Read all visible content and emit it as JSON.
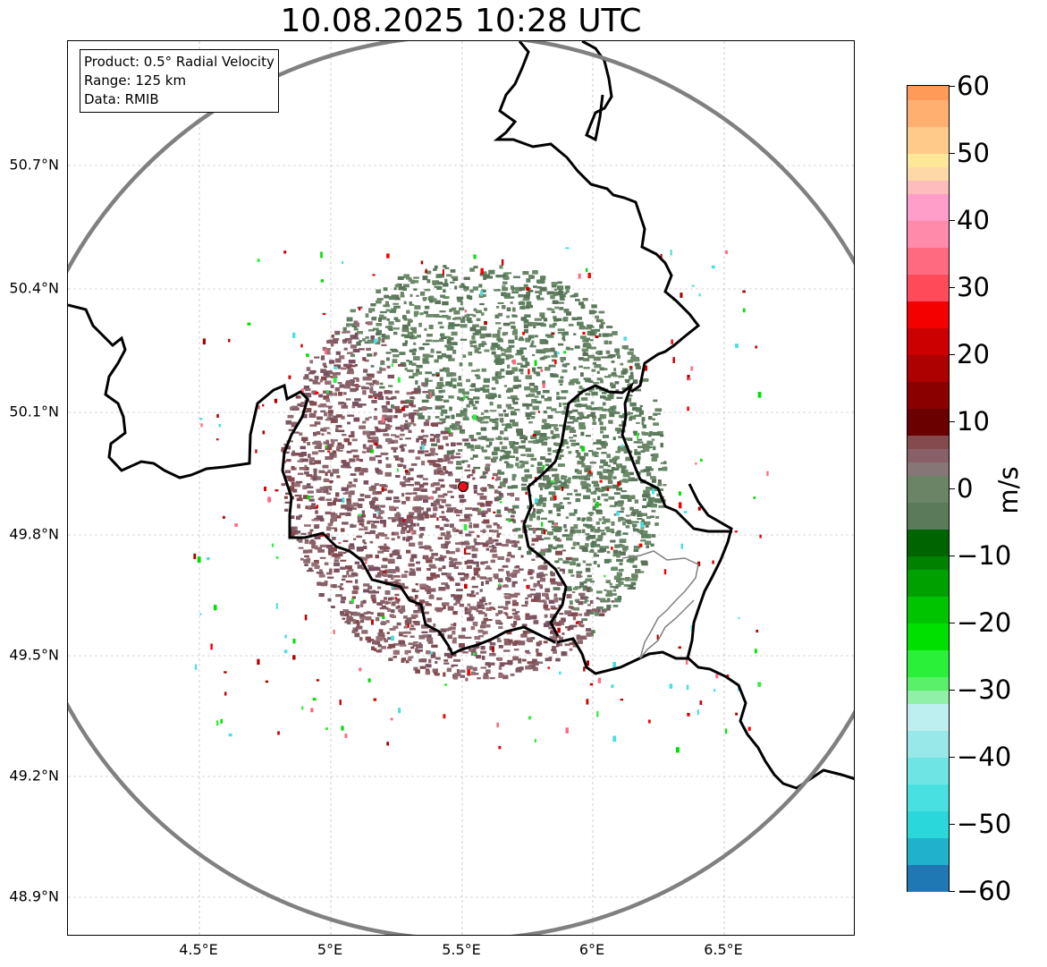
{
  "title": "10.08.2025 10:28 UTC",
  "info": {
    "product": "Product: 0.5° Radial Velocity",
    "range": "Range: 125 km",
    "data": "Data: RMIB"
  },
  "lat_labels": [
    "50.7°N",
    "50.4°N",
    "50.1°N",
    "49.8°N",
    "49.5°N",
    "49.2°N",
    "48.9°N"
  ],
  "lon_labels": [
    "4.5°E",
    "5°E",
    "5.5°E",
    "6°E",
    "6.5°E"
  ],
  "colorbar": {
    "unit": "m/s",
    "ticks": [
      "60",
      "50",
      "40",
      "30",
      "20",
      "10",
      "0",
      "−10",
      "−20",
      "−30",
      "−40",
      "−50",
      "−60"
    ],
    "min": -60,
    "max": 60,
    "stops": [
      {
        "from": -60,
        "to": -56,
        "color": "#1f77b4"
      },
      {
        "from": -56,
        "to": -52,
        "color": "#20b2cd"
      },
      {
        "from": -52,
        "to": -48,
        "color": "#2ad8dc"
      },
      {
        "from": -48,
        "to": -44,
        "color": "#48e0e0"
      },
      {
        "from": -44,
        "to": -40,
        "color": "#6fe4e4"
      },
      {
        "from": -40,
        "to": -36,
        "color": "#98e8ea"
      },
      {
        "from": -36,
        "to": -32,
        "color": "#bdeef0"
      },
      {
        "from": -32,
        "to": -30,
        "color": "#90f0a8"
      },
      {
        "from": -30,
        "to": -28,
        "color": "#5af06a"
      },
      {
        "from": -28,
        "to": -24,
        "color": "#2af03a"
      },
      {
        "from": -24,
        "to": -20,
        "color": "#00e000"
      },
      {
        "from": -20,
        "to": -16,
        "color": "#00c400"
      },
      {
        "from": -16,
        "to": -12,
        "color": "#00a000"
      },
      {
        "from": -12,
        "to": -10,
        "color": "#008200"
      },
      {
        "from": -10,
        "to": -6,
        "color": "#006400"
      },
      {
        "from": -6,
        "to": -2,
        "color": "#5a7a5a"
      },
      {
        "from": -2,
        "to": 2,
        "color": "#6b8466"
      },
      {
        "from": 2,
        "to": 4,
        "color": "#867676"
      },
      {
        "from": 4,
        "to": 6,
        "color": "#8a6068"
      },
      {
        "from": 6,
        "to": 8,
        "color": "#844a4e"
      },
      {
        "from": 8,
        "to": 12,
        "color": "#6a0000"
      },
      {
        "from": 12,
        "to": 16,
        "color": "#8a0000"
      },
      {
        "from": 16,
        "to": 20,
        "color": "#ad0000"
      },
      {
        "from": 20,
        "to": 24,
        "color": "#cc0000"
      },
      {
        "from": 24,
        "to": 28,
        "color": "#f50000"
      },
      {
        "from": 28,
        "to": 32,
        "color": "#ff4a5a"
      },
      {
        "from": 32,
        "to": 36,
        "color": "#ff6a80"
      },
      {
        "from": 36,
        "to": 40,
        "color": "#ff8aaa"
      },
      {
        "from": 40,
        "to": 44,
        "color": "#ff9ec8"
      },
      {
        "from": 44,
        "to": 46,
        "color": "#ffbcbc"
      },
      {
        "from": 46,
        "to": 48,
        "color": "#ffd8a8"
      },
      {
        "from": 48,
        "to": 50,
        "color": "#ffe79a"
      },
      {
        "from": 50,
        "to": 54,
        "color": "#ffca8a"
      },
      {
        "from": 54,
        "to": 58,
        "color": "#ffb070"
      },
      {
        "from": 58,
        "to": 60,
        "color": "#ff9a58"
      }
    ]
  },
  "radar_site": {
    "lon": 5.505,
    "lat": 49.914,
    "color": "#e8101a"
  },
  "colors": {
    "range_ring": "#808080",
    "border": "#000000",
    "grid": "#b0b0b0",
    "outbound": "#8a6068",
    "inbound": "#5f8060"
  }
}
